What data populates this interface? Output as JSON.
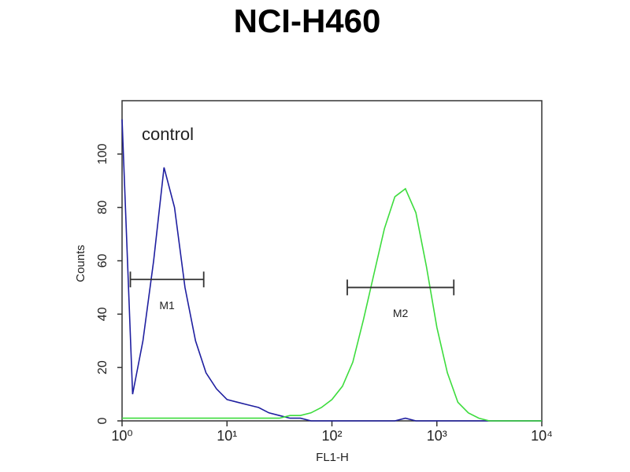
{
  "chart_data": {
    "type": "histogram-line",
    "title": "NCI-H460",
    "xlabel": "FL1-H",
    "ylabel": "Counts",
    "annotation": "control",
    "log_x": true,
    "x": [
      1,
      1.26,
      1.58,
      2,
      2.51,
      3.16,
      3.98,
      5.01,
      6.31,
      7.94,
      10,
      12.6,
      15.8,
      20,
      25.1,
      31.6,
      39.8,
      50.1,
      63.1,
      79.4,
      100,
      126,
      158,
      200,
      251,
      316,
      398,
      501,
      631,
      794,
      1000,
      1259,
      1585,
      1995,
      2512,
      3162,
      3981,
      5012,
      6310,
      7943,
      10000
    ],
    "series": [
      {
        "color": "#1f1fa0",
        "values": [
          113,
          10,
          30,
          60,
          95,
          80,
          50,
          30,
          18,
          12,
          8,
          7,
          6,
          5,
          3,
          2,
          1,
          1,
          0,
          0,
          0,
          0,
          0,
          0,
          0,
          0,
          0,
          1,
          0,
          0,
          0,
          0,
          0,
          0,
          0,
          0,
          0,
          0,
          0,
          0,
          0
        ]
      },
      {
        "color": "#3ddc3d",
        "values": [
          1,
          1,
          1,
          1,
          1,
          1,
          1,
          1,
          1,
          1,
          1,
          1,
          1,
          1,
          1,
          1,
          2,
          2,
          3,
          5,
          8,
          13,
          22,
          38,
          55,
          72,
          84,
          87,
          78,
          58,
          35,
          18,
          7,
          3,
          1,
          0,
          0,
          0,
          0,
          0,
          0
        ]
      }
    ],
    "markers": [
      {
        "label": "M1",
        "range": [
          1.2,
          6
        ],
        "y": 53
      },
      {
        "label": "M2",
        "range": [
          140,
          1450
        ],
        "y": 50
      }
    ],
    "xlim": [
      1,
      10000
    ],
    "xticks": [
      {
        "value": 1,
        "label": "10⁰"
      },
      {
        "value": 10,
        "label": "10¹"
      },
      {
        "value": 100,
        "label": "10²"
      },
      {
        "value": 1000,
        "label": "10³"
      },
      {
        "value": 10000,
        "label": "10⁴"
      }
    ],
    "ylim": [
      0,
      120
    ],
    "yticks": [
      0,
      20,
      40,
      60,
      80,
      100
    ]
  }
}
